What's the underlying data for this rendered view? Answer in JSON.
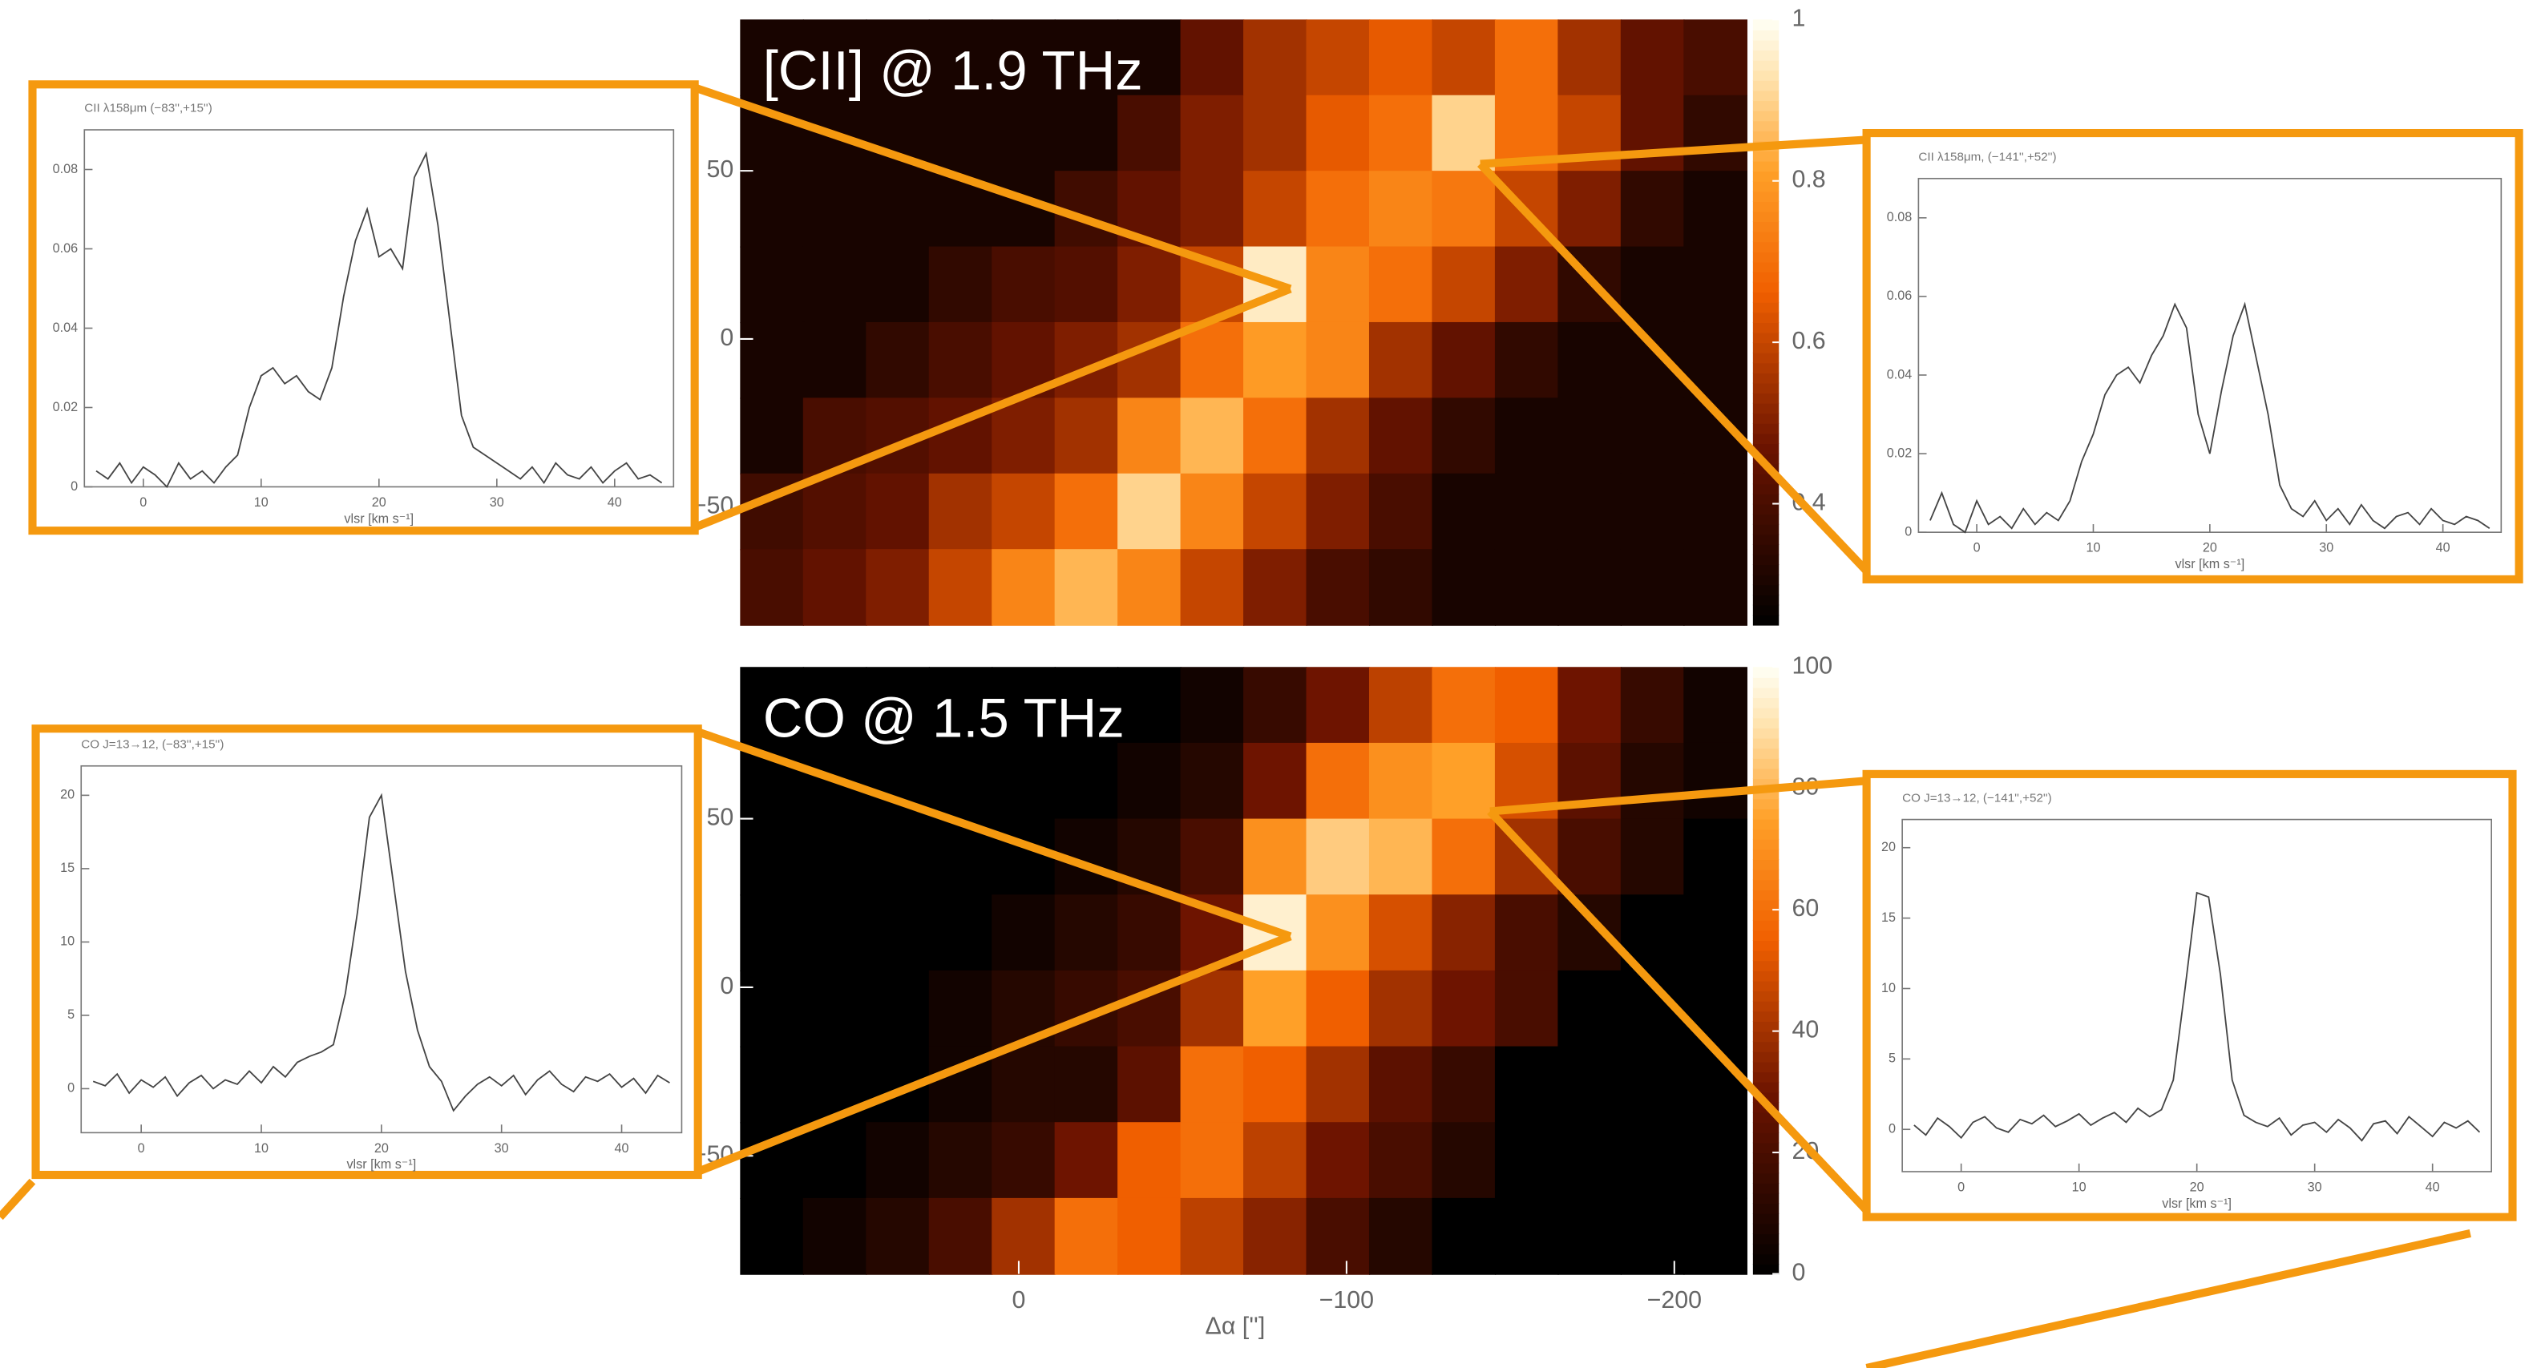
{
  "chart_data": [
    {
      "type": "heatmap",
      "title": "[CII] @ 1.9 THz",
      "xlim": [
        85,
        -222
      ],
      "ylim": [
        -85,
        95
      ],
      "yticks": [
        50,
        0,
        {
          "value": -50,
          "label": "−50"
        }
      ],
      "clim": [
        0.25,
        1
      ],
      "cticks": [
        1,
        0.8,
        0.6,
        0.4
      ],
      "z": [
        [
          0.3,
          0.3,
          0.3,
          0.3,
          0.3,
          0.3,
          0.3,
          0.45,
          0.55,
          0.6,
          0.65,
          0.6,
          0.7,
          0.55,
          0.45,
          0.4
        ],
        [
          0.3,
          0.3,
          0.3,
          0.3,
          0.3,
          0.3,
          0.4,
          0.5,
          0.55,
          0.65,
          0.7,
          0.9,
          0.7,
          0.6,
          0.45,
          0.35
        ],
        [
          0.3,
          0.3,
          0.3,
          0.3,
          0.3,
          0.38,
          0.45,
          0.5,
          0.6,
          0.7,
          0.75,
          0.72,
          0.6,
          0.5,
          0.35,
          0.3
        ],
        [
          0.3,
          0.3,
          0.3,
          0.35,
          0.4,
          0.42,
          0.5,
          0.6,
          0.95,
          0.75,
          0.7,
          0.6,
          0.5,
          0.35,
          0.3,
          0.3
        ],
        [
          0.3,
          0.3,
          0.35,
          0.4,
          0.45,
          0.5,
          0.55,
          0.7,
          0.8,
          0.75,
          0.55,
          0.45,
          0.35,
          0.3,
          0.3,
          0.3
        ],
        [
          0.3,
          0.4,
          0.42,
          0.45,
          0.5,
          0.55,
          0.75,
          0.85,
          0.7,
          0.55,
          0.45,
          0.35,
          0.3,
          0.3,
          0.3,
          0.3
        ],
        [
          0.38,
          0.42,
          0.45,
          0.55,
          0.6,
          0.7,
          0.9,
          0.75,
          0.6,
          0.5,
          0.4,
          0.3,
          0.3,
          0.3,
          0.3,
          0.3
        ],
        [
          0.4,
          0.45,
          0.5,
          0.6,
          0.75,
          0.85,
          0.75,
          0.6,
          0.5,
          0.4,
          0.35,
          0.3,
          0.3,
          0.3,
          0.3,
          0.3
        ]
      ]
    },
    {
      "type": "heatmap",
      "title": "CO @ 1.5 THz",
      "xlabel": "Δα ['']",
      "xlim": [
        85,
        -222
      ],
      "ylim": [
        -85,
        95
      ],
      "xticks": [
        0,
        {
          "value": -100,
          "label": "−100"
        },
        {
          "value": -200,
          "label": "−200"
        }
      ],
      "yticks": [
        50,
        0,
        {
          "value": -50,
          "label": "−50"
        }
      ],
      "clim": [
        0,
        100
      ],
      "cticks": [
        0,
        20,
        40,
        60,
        80,
        100
      ],
      "z": [
        [
          0,
          0,
          0,
          0,
          0,
          0,
          0,
          5,
          15,
          30,
          45,
          60,
          55,
          30,
          15,
          5
        ],
        [
          0,
          0,
          0,
          0,
          0,
          0,
          5,
          10,
          30,
          60,
          70,
          75,
          50,
          25,
          10,
          5
        ],
        [
          0,
          0,
          0,
          0,
          0,
          5,
          10,
          20,
          70,
          85,
          80,
          60,
          40,
          20,
          10,
          0
        ],
        [
          0,
          0,
          0,
          0,
          5,
          10,
          15,
          30,
          95,
          70,
          50,
          35,
          20,
          10,
          0,
          0
        ],
        [
          0,
          0,
          0,
          5,
          10,
          15,
          20,
          40,
          75,
          55,
          40,
          30,
          20,
          0,
          0,
          0
        ],
        [
          0,
          0,
          0,
          5,
          10,
          10,
          25,
          60,
          55,
          40,
          25,
          15,
          0,
          0,
          0,
          0
        ],
        [
          0,
          0,
          5,
          10,
          15,
          30,
          55,
          60,
          45,
          30,
          20,
          10,
          0,
          0,
          0,
          0
        ],
        [
          0,
          5,
          10,
          20,
          40,
          60,
          55,
          45,
          35,
          20,
          10,
          0,
          0,
          0,
          0,
          0
        ]
      ]
    },
    {
      "type": "line",
      "title": "CII λ158μm (−83'',+15'')",
      "xlabel": "vlsr [km s⁻¹]",
      "color": "#444",
      "xlim": [
        -5,
        45
      ],
      "ylim": [
        0,
        0.09
      ],
      "xticks": [
        0,
        10,
        20,
        30,
        40
      ],
      "yticks": [
        0,
        0.02,
        0.04,
        0.06,
        0.08
      ],
      "x": [
        -4,
        -3,
        -2,
        -1,
        0,
        1,
        2,
        3,
        4,
        5,
        6,
        7,
        8,
        9,
        10,
        11,
        12,
        13,
        14,
        15,
        16,
        17,
        18,
        19,
        20,
        21,
        22,
        23,
        24,
        25,
        26,
        27,
        28,
        29,
        30,
        31,
        32,
        33,
        34,
        35,
        36,
        37,
        38,
        39,
        40,
        41,
        42,
        43,
        44
      ],
      "values": [
        0.004,
        0.002,
        0.006,
        0.001,
        0.005,
        0.003,
        0.0,
        0.006,
        0.002,
        0.004,
        0.001,
        0.005,
        0.008,
        0.02,
        0.028,
        0.03,
        0.026,
        0.028,
        0.024,
        0.022,
        0.03,
        0.048,
        0.062,
        0.07,
        0.058,
        0.06,
        0.055,
        0.078,
        0.084,
        0.066,
        0.042,
        0.018,
        0.01,
        0.008,
        0.006,
        0.004,
        0.002,
        0.005,
        0.001,
        0.006,
        0.003,
        0.002,
        0.005,
        0.001,
        0.004,
        0.006,
        0.002,
        0.003,
        0.001
      ]
    },
    {
      "type": "line",
      "title": "CII λ158μm, (−141'',+52'')",
      "xlabel": "vlsr [km s⁻¹]",
      "color": "#444",
      "xlim": [
        -5,
        45
      ],
      "ylim": [
        0,
        0.09
      ],
      "xticks": [
        0,
        10,
        20,
        30,
        40
      ],
      "yticks": [
        0,
        0.02,
        0.04,
        0.06,
        0.08
      ],
      "x": [
        -4,
        -3,
        -2,
        -1,
        0,
        1,
        2,
        3,
        4,
        5,
        6,
        7,
        8,
        9,
        10,
        11,
        12,
        13,
        14,
        15,
        16,
        17,
        18,
        19,
        20,
        21,
        22,
        23,
        24,
        25,
        26,
        27,
        28,
        29,
        30,
        31,
        32,
        33,
        34,
        35,
        36,
        37,
        38,
        39,
        40,
        41,
        42,
        43,
        44
      ],
      "values": [
        0.003,
        0.01,
        0.002,
        0.0,
        0.008,
        0.002,
        0.004,
        0.001,
        0.006,
        0.002,
        0.005,
        0.003,
        0.008,
        0.018,
        0.025,
        0.035,
        0.04,
        0.042,
        0.038,
        0.045,
        0.05,
        0.058,
        0.052,
        0.03,
        0.02,
        0.036,
        0.05,
        0.058,
        0.044,
        0.03,
        0.012,
        0.006,
        0.004,
        0.008,
        0.003,
        0.006,
        0.002,
        0.007,
        0.003,
        0.001,
        0.004,
        0.005,
        0.002,
        0.006,
        0.003,
        0.002,
        0.004,
        0.003,
        0.001
      ]
    },
    {
      "type": "line",
      "title": "CO J=13→12, (−83'',+15'')",
      "xlabel": "vlsr [km s⁻¹]",
      "color": "#444",
      "xlim": [
        -5,
        45
      ],
      "ylim": [
        -3,
        22
      ],
      "xticks": [
        0,
        10,
        20,
        30,
        40
      ],
      "yticks": [
        0,
        5,
        10,
        15,
        20
      ],
      "x": [
        -4,
        -3,
        -2,
        -1,
        0,
        1,
        2,
        3,
        4,
        5,
        6,
        7,
        8,
        9,
        10,
        11,
        12,
        13,
        14,
        15,
        16,
        17,
        18,
        19,
        20,
        21,
        22,
        23,
        24,
        25,
        26,
        27,
        28,
        29,
        30,
        31,
        32,
        33,
        34,
        35,
        36,
        37,
        38,
        39,
        40,
        41,
        42,
        43,
        44
      ],
      "values": [
        0.5,
        0.2,
        1.0,
        -0.3,
        0.6,
        0.1,
        0.8,
        -0.5,
        0.4,
        0.9,
        0.0,
        0.6,
        0.3,
        1.2,
        0.4,
        1.5,
        0.8,
        1.8,
        2.2,
        2.5,
        3.0,
        6.5,
        12.0,
        18.5,
        20.0,
        14.0,
        8.0,
        4.0,
        1.5,
        0.5,
        -1.5,
        -0.5,
        0.3,
        0.8,
        0.2,
        0.9,
        -0.4,
        0.6,
        1.2,
        0.3,
        -0.2,
        0.8,
        0.5,
        1.0,
        0.1,
        0.7,
        -0.3,
        0.9,
        0.4
      ]
    },
    {
      "type": "line",
      "title": "CO J=13→12, (−141'',+52'')",
      "xlabel": "vlsr [km s⁻¹]",
      "color": "#444",
      "xlim": [
        -5,
        45
      ],
      "ylim": [
        -3,
        22
      ],
      "xticks": [
        0,
        10,
        20,
        30,
        40
      ],
      "yticks": [
        0,
        5,
        10,
        15,
        20
      ],
      "x": [
        -4,
        -3,
        -2,
        -1,
        0,
        1,
        2,
        3,
        4,
        5,
        6,
        7,
        8,
        9,
        10,
        11,
        12,
        13,
        14,
        15,
        16,
        17,
        18,
        19,
        20,
        21,
        22,
        23,
        24,
        25,
        26,
        27,
        28,
        29,
        30,
        31,
        32,
        33,
        34,
        35,
        36,
        37,
        38,
        39,
        40,
        41,
        42,
        43,
        44
      ],
      "values": [
        0.3,
        -0.4,
        0.8,
        0.2,
        -0.6,
        0.5,
        0.9,
        0.1,
        -0.2,
        0.7,
        0.4,
        1.0,
        0.2,
        0.6,
        1.1,
        0.3,
        0.8,
        1.2,
        0.5,
        1.5,
        0.9,
        1.4,
        3.5,
        10.0,
        16.8,
        16.5,
        11.0,
        3.5,
        1.0,
        0.5,
        0.2,
        0.8,
        -0.4,
        0.3,
        0.5,
        -0.2,
        0.7,
        0.1,
        -0.8,
        0.4,
        0.6,
        -0.3,
        0.9,
        0.2,
        -0.5,
        0.5,
        0.1,
        0.6,
        -0.2
      ]
    }
  ]
}
